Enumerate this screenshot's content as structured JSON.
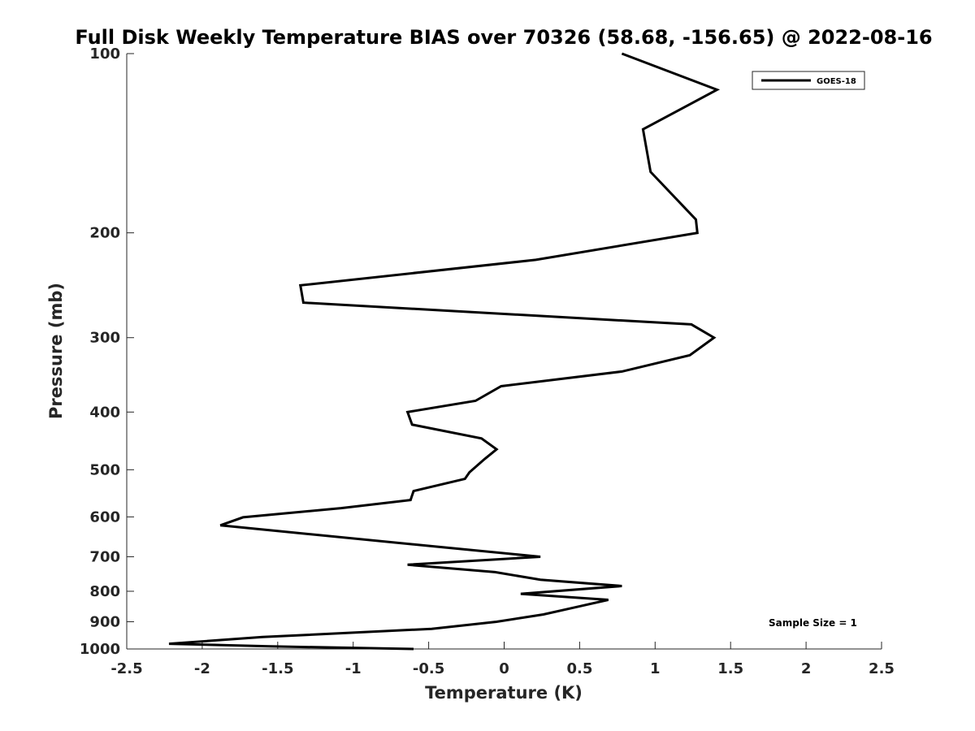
{
  "chart_data": {
    "type": "line",
    "title": "Full Disk Weekly Temperature BIAS over 70326 (58.68, -156.65) @ 2022-08-16",
    "xlabel": "Temperature (K)",
    "ylabel": "Pressure (mb)",
    "xlim": [
      -2.5,
      2.5
    ],
    "ylim": [
      100,
      1000
    ],
    "y_scale": "log",
    "y_reversed": true,
    "grid": false,
    "legend_position": "top-right",
    "x_ticks": [
      -2.5,
      -2,
      -1.5,
      -1,
      -0.5,
      0,
      0.5,
      1,
      1.5,
      2,
      2.5
    ],
    "x_tick_labels": [
      "-2.5",
      "-2",
      "-1.5",
      "-1",
      "-0.5",
      "0",
      "0.5",
      "1",
      "1.5",
      "2",
      "2.5"
    ],
    "y_ticks": [
      100,
      200,
      300,
      400,
      500,
      600,
      700,
      800,
      900,
      1000
    ],
    "y_tick_labels": [
      "100",
      "200",
      "300",
      "400",
      "500",
      "600",
      "700",
      "800",
      "900",
      "1000"
    ],
    "series": [
      {
        "name": "GOES-18",
        "color": "#000000",
        "x": [
          0.78,
          1.41,
          0.92,
          0.97,
          1.27,
          1.28,
          0.21,
          -1.35,
          -1.33,
          1.24,
          1.39,
          1.23,
          0.78,
          -0.02,
          -0.19,
          -0.64,
          -0.61,
          -0.15,
          -0.05,
          -0.13,
          -0.23,
          -0.26,
          -0.6,
          -0.62,
          -1.08,
          -1.73,
          -1.88,
          -0.4,
          0.24,
          -0.64,
          -0.06,
          0.24,
          0.78,
          0.11,
          0.69,
          0.48,
          0.26,
          -0.05,
          -0.48,
          -1.6,
          -2.22,
          -1.55,
          -0.6
        ],
        "y": [
          100,
          115,
          134,
          158,
          190,
          200,
          222,
          245,
          262,
          285,
          300,
          321,
          342,
          362,
          383,
          400,
          420,
          443,
          462,
          480,
          505,
          518,
          543,
          562,
          580,
          601,
          620,
          675,
          700,
          722,
          743,
          765,
          784,
          808,
          827,
          850,
          875,
          900,
          925,
          955,
          980,
          990,
          1000
        ]
      }
    ],
    "annotations": [
      {
        "text": "Sample Size = 1"
      }
    ]
  }
}
